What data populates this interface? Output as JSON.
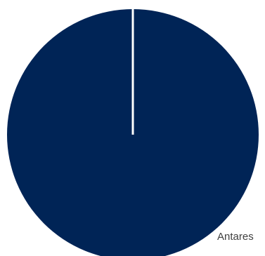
{
  "chart_data": {
    "type": "pie",
    "title": "",
    "slices": [
      {
        "label": "Antares",
        "value": 100,
        "color": "#002456"
      }
    ],
    "legend": "none",
    "data_labels": [
      "Antares"
    ],
    "separator_color": "#ffffff"
  }
}
